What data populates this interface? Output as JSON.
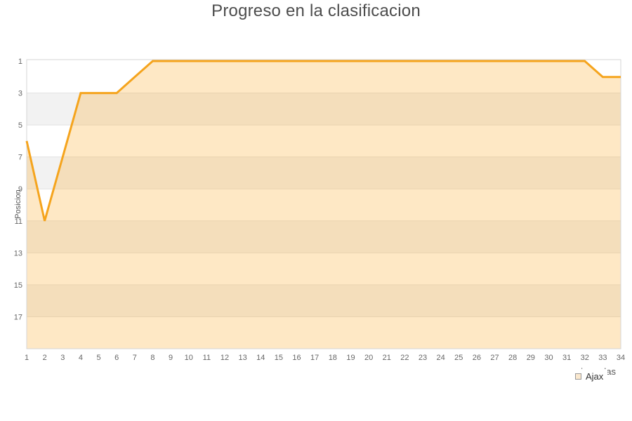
{
  "chart_data": {
    "type": "area",
    "title": "Progreso en la clasificacion",
    "xlabel": "jornadas",
    "ylabel": "Posicion",
    "categories": [
      1,
      2,
      3,
      4,
      5,
      6,
      7,
      8,
      9,
      10,
      11,
      12,
      13,
      14,
      15,
      16,
      17,
      18,
      19,
      20,
      21,
      22,
      23,
      24,
      25,
      26,
      27,
      28,
      29,
      30,
      31,
      32,
      33,
      34
    ],
    "series": [
      {
        "name": "Ajax",
        "values": [
          6,
          11,
          7,
          3,
          3,
          3,
          2,
          1,
          1,
          1,
          1,
          1,
          1,
          1,
          1,
          1,
          1,
          1,
          1,
          1,
          1,
          1,
          1,
          1,
          1,
          1,
          1,
          1,
          1,
          1,
          1,
          1,
          2,
          2
        ]
      }
    ],
    "ylim": [
      1,
      19
    ],
    "yticks": [
      1,
      3,
      5,
      7,
      9,
      11,
      13,
      15,
      17
    ],
    "y_axis_inverted": true,
    "grid": "horizontal bands every 2 positions, no vertical gridlines",
    "legend_position": "bottom-right",
    "colors": {
      "line": "#F5A41D",
      "area_fill": "rgba(250,170,40,0.27)",
      "band_light": "#ffffff",
      "band_dark": "#f2f2f2",
      "gridline": "#e2e2e2",
      "plot_border": "#d6d6d6",
      "title_text": "#4d4d4d",
      "tick_text": "#666666"
    }
  },
  "legend": {
    "items": [
      {
        "label": "Ajax",
        "swatch_fill": "#FAE8CE",
        "swatch_border": "#999999"
      }
    ]
  }
}
